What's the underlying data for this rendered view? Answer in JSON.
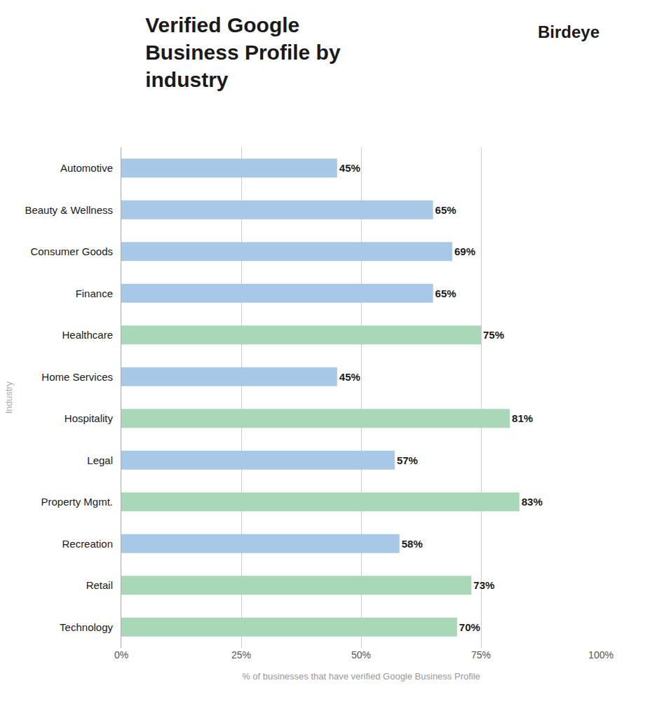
{
  "chart_data": {
    "type": "bar",
    "orientation": "horizontal",
    "title": "Verified Google\nBusiness Profile by\nindustry",
    "annotations": [
      {
        "text": "Birdeye"
      }
    ],
    "xlabel": "% of businesses that have verified Google Business Profile",
    "ylabel": "Industry",
    "categories": [
      "Automotive",
      "Beauty & Wellness",
      "Consumer Goods",
      "Finance",
      "Healthcare",
      "Home Services",
      "Hospitality",
      "Legal",
      "Property Mgmt.",
      "Recreation",
      "Retail",
      "Technology"
    ],
    "values": [
      45,
      65,
      69,
      65,
      75,
      45,
      81,
      57,
      83,
      58,
      73,
      70
    ],
    "value_labels": [
      "45%",
      "65%",
      "69%",
      "65%",
      "75%",
      "45%",
      "81%",
      "57%",
      "83%",
      "58%",
      "73%",
      "70%"
    ],
    "colors": [
      "#a8c8e8",
      "#a8c8e8",
      "#a8c8e8",
      "#a8c8e8",
      "#a8d8b8",
      "#a8c8e8",
      "#a8d8b8",
      "#a8c8e8",
      "#a8d8b8",
      "#a8c8e8",
      "#a8d8b8",
      "#a8d8b8"
    ],
    "xlim": [
      0,
      100
    ],
    "xticks": [
      {
        "value": 0,
        "label": "0%"
      },
      {
        "value": 25,
        "label": "25%"
      },
      {
        "value": 50,
        "label": "50%"
      },
      {
        "value": 75,
        "label": "75%"
      },
      {
        "value": 100,
        "label": "100%"
      }
    ],
    "grid": true,
    "data_labels": true
  }
}
